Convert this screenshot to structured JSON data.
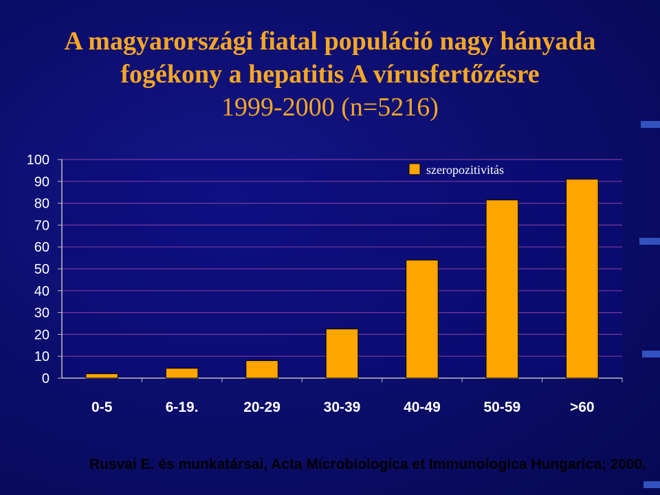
{
  "title": {
    "line1": "A magyarországi fiatal populáció nagy hányada",
    "line2": "fogékony a hepatitis A vírusfertőzésre",
    "line3": "1999-2000 (n=5216)"
  },
  "colors": {
    "bar": "#FFA500",
    "bar_stroke": "#000000",
    "title": "#F5A623",
    "axis_text": "#FFFFFF",
    "grid": "#7a3a9a",
    "plot_bg": "#0a0a7a"
  },
  "chart_data": {
    "type": "bar",
    "categories": [
      "0-5",
      "6-19.",
      "20-29",
      "30-39",
      "40-49",
      "50-59",
      ">60"
    ],
    "series": [
      {
        "name": "szeropozitivitás",
        "values": [
          2,
          4.5,
          8,
          22.5,
          54,
          81.5,
          91
        ]
      }
    ],
    "ylim": [
      0,
      100
    ],
    "yticks": [
      "0",
      "10",
      "20",
      "30",
      "40",
      "50",
      "60",
      "70",
      "80",
      "90",
      "100"
    ],
    "grid": true,
    "legend_position": "top-right"
  },
  "source": "Rusvai E. és munkatársai, Acta Microbiologica et Immunologica Hungarica; 2000."
}
